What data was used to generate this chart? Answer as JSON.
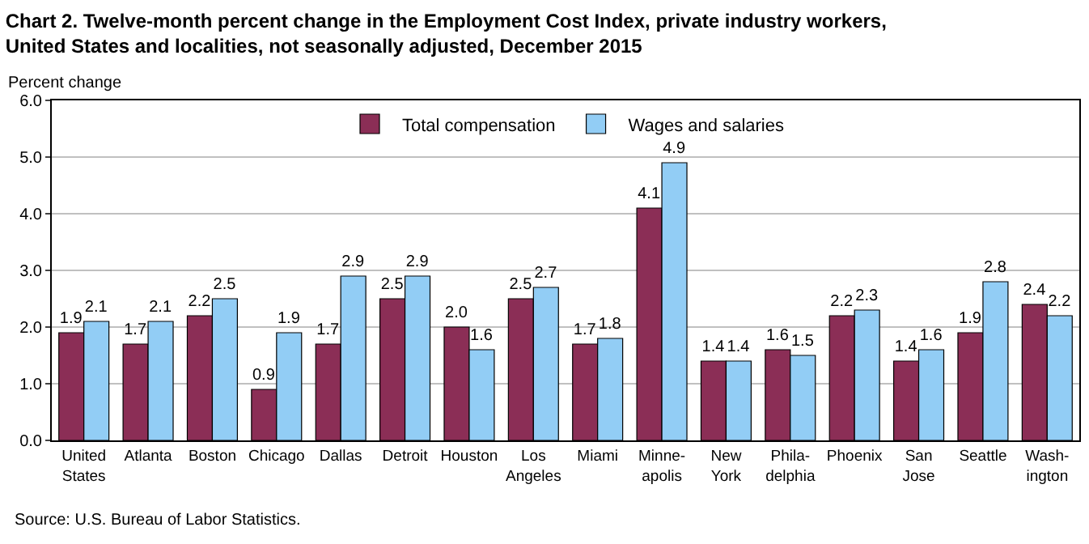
{
  "chart_data": {
    "type": "bar",
    "title": "Chart 2. Twelve-month percent change in the Employment Cost Index, private industry workers,\nUnited States and localities, not seasonally adjusted, December 2015",
    "ylabel": "Percent change",
    "categories": [
      "United\nStates",
      "Atlanta",
      "Boston",
      "Chicago",
      "Dallas",
      "Detroit",
      "Houston",
      "Los\nAngeles",
      "Miami",
      "Minne-\napolis",
      "New\nYork",
      "Phila-\ndelphia",
      "Phoenix",
      "San\nJose",
      "Seattle",
      "Wash-\nington"
    ],
    "series": [
      {
        "name": "Total compensation",
        "color": "#8b2e56",
        "values": [
          1.9,
          1.7,
          2.2,
          0.9,
          1.7,
          2.5,
          2.0,
          2.5,
          1.7,
          4.1,
          1.4,
          1.6,
          2.2,
          1.4,
          1.9,
          2.4
        ],
        "value_labels": [
          "1.9",
          "1.7",
          "2.2",
          "0.9",
          "1.7",
          "2.5",
          "2.0",
          "2.5",
          "1.7",
          "4.1",
          "1.4",
          "1.6",
          "2.2",
          "1.4",
          "1.9",
          "2.4"
        ]
      },
      {
        "name": "Wages and salaries",
        "color": "#92cdf5",
        "values": [
          2.1,
          2.1,
          2.5,
          1.9,
          2.9,
          2.9,
          1.6,
          2.7,
          1.8,
          4.9,
          1.4,
          1.5,
          2.3,
          1.6,
          2.8,
          2.2
        ],
        "value_labels": [
          "2.1",
          "2.1",
          "2.5",
          "1.9",
          "2.9",
          "2.9",
          "1.6",
          "2.7",
          "1.8",
          "4.9",
          "1.4",
          "1.5",
          "2.3",
          "1.6",
          "2.8",
          "2.2"
        ]
      }
    ],
    "ylim": [
      0,
      6
    ],
    "yticks": [
      {
        "value": 0,
        "label": "0.0"
      },
      {
        "value": 1,
        "label": "1.0"
      },
      {
        "value": 2,
        "label": "2.0"
      },
      {
        "value": 3,
        "label": "3.0"
      },
      {
        "value": 4,
        "label": "4.0"
      },
      {
        "value": 5,
        "label": "5.0"
      },
      {
        "value": 6,
        "label": "6.0"
      }
    ],
    "grid": "y",
    "legend": "top",
    "annotations": [
      "Source: U.S. Bureau of Labor Statistics."
    ]
  }
}
